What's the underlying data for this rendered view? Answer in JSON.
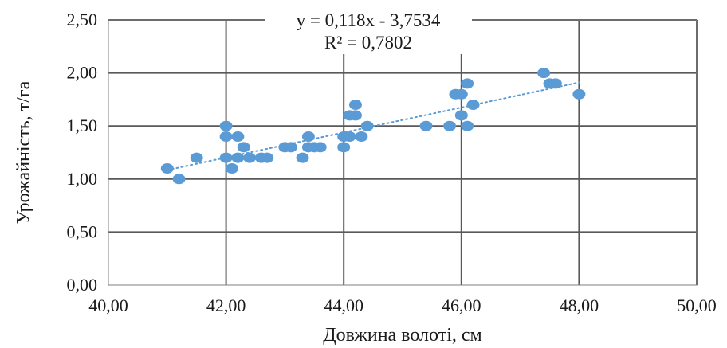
{
  "chart_data": {
    "type": "scatter",
    "xlabel": "Довжина волоті, см",
    "ylabel": "Урожайність, т/га",
    "xlim": [
      40,
      50
    ],
    "ylim": [
      0,
      2.5
    ],
    "x_ticks": [
      "40,00",
      "42,00",
      "44,00",
      "46,00",
      "48,00",
      "50,00"
    ],
    "y_ticks": [
      "0,00",
      "0,50",
      "1,00",
      "1,50",
      "2,00",
      "2,50"
    ],
    "grid": true,
    "marker_color": "#5B9BD5",
    "trendline_color": "#5B9BD5",
    "trendline": {
      "slope": 0.118,
      "intercept": -3.7534,
      "x_range": [
        41,
        48
      ],
      "equation": "y = 0,118x - 3,7534",
      "r2": "R² = 0,7802"
    },
    "points": [
      {
        "x": 41.0,
        "y": 1.1
      },
      {
        "x": 41.2,
        "y": 1.0
      },
      {
        "x": 41.5,
        "y": 1.2
      },
      {
        "x": 42.0,
        "y": 1.5
      },
      {
        "x": 42.0,
        "y": 1.4
      },
      {
        "x": 42.0,
        "y": 1.2
      },
      {
        "x": 42.1,
        "y": 1.1
      },
      {
        "x": 42.2,
        "y": 1.4
      },
      {
        "x": 42.2,
        "y": 1.2
      },
      {
        "x": 42.3,
        "y": 1.3
      },
      {
        "x": 42.4,
        "y": 1.2
      },
      {
        "x": 42.6,
        "y": 1.2
      },
      {
        "x": 42.7,
        "y": 1.2
      },
      {
        "x": 43.0,
        "y": 1.3
      },
      {
        "x": 43.1,
        "y": 1.3
      },
      {
        "x": 43.3,
        "y": 1.2
      },
      {
        "x": 43.4,
        "y": 1.4
      },
      {
        "x": 43.4,
        "y": 1.3
      },
      {
        "x": 43.5,
        "y": 1.3
      },
      {
        "x": 43.6,
        "y": 1.3
      },
      {
        "x": 44.0,
        "y": 1.4
      },
      {
        "x": 44.0,
        "y": 1.3
      },
      {
        "x": 44.1,
        "y": 1.6
      },
      {
        "x": 44.1,
        "y": 1.4
      },
      {
        "x": 44.2,
        "y": 1.7
      },
      {
        "x": 44.2,
        "y": 1.6
      },
      {
        "x": 44.3,
        "y": 1.4
      },
      {
        "x": 44.4,
        "y": 1.5
      },
      {
        "x": 45.4,
        "y": 1.5
      },
      {
        "x": 45.8,
        "y": 1.5
      },
      {
        "x": 45.9,
        "y": 1.8
      },
      {
        "x": 46.0,
        "y": 1.8
      },
      {
        "x": 46.0,
        "y": 1.6
      },
      {
        "x": 46.1,
        "y": 1.9
      },
      {
        "x": 46.1,
        "y": 1.5
      },
      {
        "x": 46.2,
        "y": 1.7
      },
      {
        "x": 47.4,
        "y": 2.0
      },
      {
        "x": 47.5,
        "y": 1.9
      },
      {
        "x": 47.6,
        "y": 1.9
      },
      {
        "x": 48.0,
        "y": 1.8
      }
    ]
  }
}
